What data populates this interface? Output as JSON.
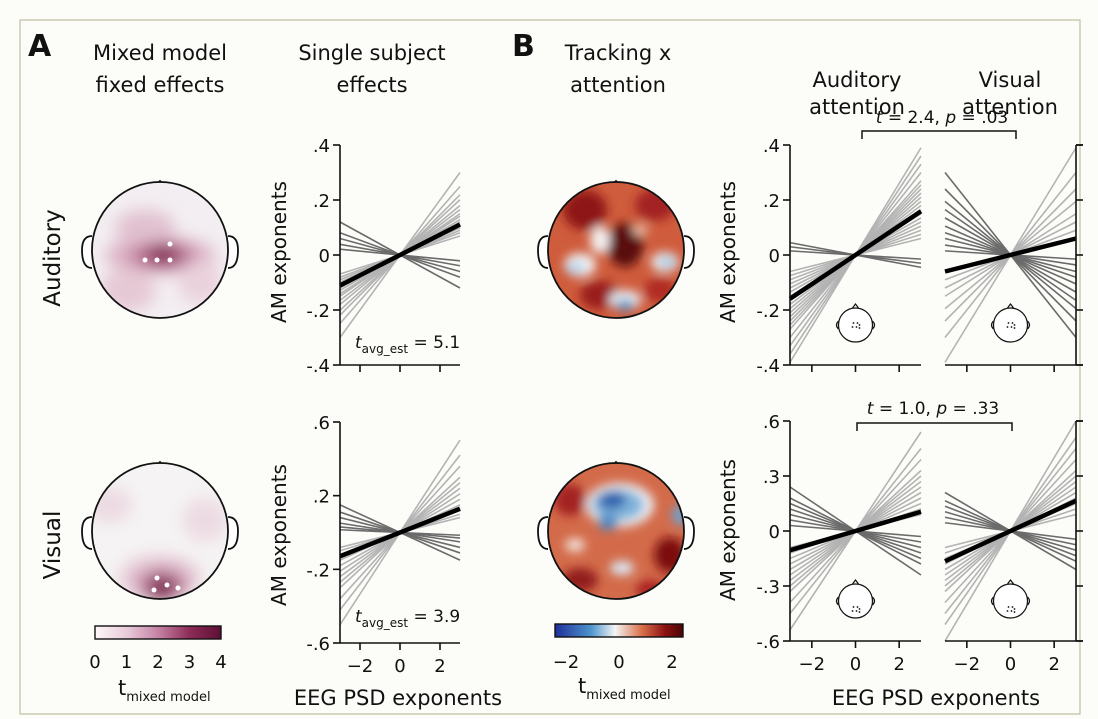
{
  "panel_letters": {
    "a": "A",
    "b": "B"
  },
  "column_titles": {
    "mixed_1": "Mixed model",
    "mixed_2": "fixed effects",
    "single_1": "Single subject",
    "single_2": "effects",
    "tracking_1": "Tracking x",
    "tracking_2": "attention",
    "aud_att_1": "Auditory",
    "aud_att_2": "attention",
    "vis_att_1": "Visual",
    "vis_att_2": "attention"
  },
  "row_labels": {
    "auditory": "Auditory",
    "visual": "Visual"
  },
  "colorbars": {
    "mixed": {
      "ticks": [
        "0",
        "1",
        "2",
        "3",
        "4"
      ],
      "label_main": "t",
      "label_sub": "mixed model",
      "colors": [
        "#fdf8fa",
        "#e9ccd9",
        "#c583a4",
        "#8d2c57",
        "#5e0f33"
      ]
    },
    "tracking": {
      "ticks": [
        "−2",
        "0",
        "2"
      ],
      "label_main": "t",
      "label_sub": "mixed model",
      "colors": [
        "#1f2f9a",
        "#4d94cc",
        "#f4f4f4",
        "#d87048",
        "#8c1212",
        "#4a0505"
      ]
    }
  },
  "annotations": {
    "aud_stat": {
      "main": "t",
      "sub": "avg_est",
      "rest": " = 5.1"
    },
    "vis_stat": {
      "main": "t",
      "sub": "avg_est",
      "rest": " = 3.9"
    },
    "top_compare": {
      "t": "t",
      "tval": " = 2.4, ",
      "p": "p",
      "pval": " = .03"
    },
    "bottom_compare": {
      "t": "t",
      "tval": " = 1.0, ",
      "p": "p",
      "pval": " = .33"
    }
  },
  "shared_labels": {
    "ylabel": "AM exponents",
    "xlabel_left": "EEG PSD exponents",
    "xlabel_right": "EEG PSD exponents"
  },
  "chart_data": [
    {
      "id": "single_auditory",
      "type": "line",
      "title": "",
      "xlabel": "",
      "ylabel": "AM exponents",
      "xlim": [
        -3,
        3
      ],
      "ylim": [
        -0.4,
        0.4
      ],
      "xticks": [],
      "yticks": [
        0.4,
        0.2,
        0,
        -0.2,
        -0.4
      ],
      "ytick_labels": [
        ".4",
        ".2",
        "0",
        "-.2",
        "-.4"
      ],
      "pivot": [
        0,
        0
      ],
      "slopes_positive": [
        0.1,
        0.083,
        0.073,
        0.067,
        0.06,
        0.055,
        0.05,
        0.047,
        0.043,
        0.04,
        0.037,
        0.033,
        0.03,
        0.027,
        0.023
      ],
      "slopes_negative": [
        -0.04,
        -0.027,
        -0.02,
        -0.013,
        -0.007
      ],
      "average_slope": 0.037
    },
    {
      "id": "single_visual",
      "type": "line",
      "title": "",
      "xlabel": "EEG PSD exponents",
      "ylabel": "AM exponents",
      "xlim": [
        -3,
        3
      ],
      "ylim": [
        -0.6,
        0.6
      ],
      "xticks": [
        -2,
        0,
        2
      ],
      "xtick_labels": [
        "−2",
        "0",
        "2"
      ],
      "yticks": [
        0.6,
        0.2,
        -0.2,
        -0.6
      ],
      "ytick_labels": [
        ".6",
        ".2",
        "-.2",
        "-.6"
      ],
      "pivot": [
        0,
        0
      ],
      "slopes_positive": [
        0.167,
        0.14,
        0.12,
        0.1,
        0.09,
        0.08,
        0.07,
        0.06,
        0.05,
        0.04,
        0.033,
        0.027
      ],
      "slopes_negative": [
        -0.05,
        -0.037,
        -0.027,
        -0.017,
        -0.01,
        -0.005
      ],
      "average_slope": 0.043
    },
    {
      "id": "tracking_auditory_attention",
      "type": "line",
      "title": "Auditory attention",
      "xlabel": "",
      "ylabel": "AM exponents",
      "xlim": [
        -3,
        3
      ],
      "ylim": [
        -0.4,
        0.4
      ],
      "xticks": [],
      "yticks": [
        0.4,
        0.2,
        0,
        -0.2,
        -0.4
      ],
      "ytick_labels": [
        ".4",
        ".2",
        "0",
        "-.2",
        "-.4"
      ],
      "pivot": [
        0,
        0
      ],
      "slopes_positive": [
        0.13,
        0.12,
        0.11,
        0.1,
        0.09,
        0.085,
        0.08,
        0.075,
        0.07,
        0.065,
        0.06,
        0.055,
        0.05,
        0.045,
        0.04,
        0.035,
        0.03,
        0.025,
        0.02
      ],
      "slopes_negative": [
        -0.015,
        -0.01,
        -0.005
      ],
      "average_slope": 0.053
    },
    {
      "id": "tracking_visual_attention",
      "type": "line",
      "title": "Visual attention",
      "xlabel": "",
      "ylabel": "",
      "xlim": [
        -3,
        3
      ],
      "ylim": [
        -0.4,
        0.4
      ],
      "xticks": [],
      "yticks": [],
      "pivot": [
        0,
        0
      ],
      "slopes_positive": [
        0.13,
        0.1,
        0.08,
        0.065,
        0.05,
        0.04,
        0.03,
        0.02
      ],
      "slopes_negative": [
        -0.1,
        -0.08,
        -0.065,
        -0.055,
        -0.045,
        -0.035,
        -0.027,
        -0.02,
        -0.012,
        -0.005
      ],
      "average_slope": 0.02
    },
    {
      "id": "visual_auditory_attention",
      "type": "line",
      "title": "",
      "xlabel": "",
      "ylabel": "AM exponents",
      "xlim": [
        -3,
        3
      ],
      "ylim": [
        -0.6,
        0.6
      ],
      "xticks": [
        -2,
        0,
        2
      ],
      "xtick_labels": [
        "−2",
        "0",
        "2"
      ],
      "yticks": [
        0.6,
        0.3,
        0,
        -0.3,
        -0.6
      ],
      "ytick_labels": [
        ".6",
        ".3",
        "0",
        "-.3",
        "-.6"
      ],
      "pivot": [
        0,
        0
      ],
      "slopes_positive": [
        0.18,
        0.15,
        0.13,
        0.11,
        0.1,
        0.09,
        0.08,
        0.07,
        0.06,
        0.05,
        0.04,
        0.03
      ],
      "slopes_negative": [
        -0.08,
        -0.06,
        -0.05,
        -0.04,
        -0.03,
        -0.02,
        -0.01
      ],
      "average_slope": 0.035
    },
    {
      "id": "visual_visual_attention",
      "type": "line",
      "title": "",
      "xlabel": "",
      "ylabel": "",
      "xlim": [
        -3,
        3
      ],
      "ylim": [
        -0.6,
        0.6
      ],
      "xticks": [
        -2,
        0,
        2
      ],
      "xtick_labels": [
        "−2",
        "0",
        "2"
      ],
      "yticks": [],
      "pivot": [
        0,
        0
      ],
      "slopes_positive": [
        0.2,
        0.17,
        0.15,
        0.13,
        0.11,
        0.1,
        0.09,
        0.08,
        0.07,
        0.06,
        0.05,
        0.04,
        0.03
      ],
      "slopes_negative": [
        -0.07,
        -0.055,
        -0.045,
        -0.035,
        -0.025,
        -0.015
      ],
      "average_slope": 0.055
    }
  ]
}
